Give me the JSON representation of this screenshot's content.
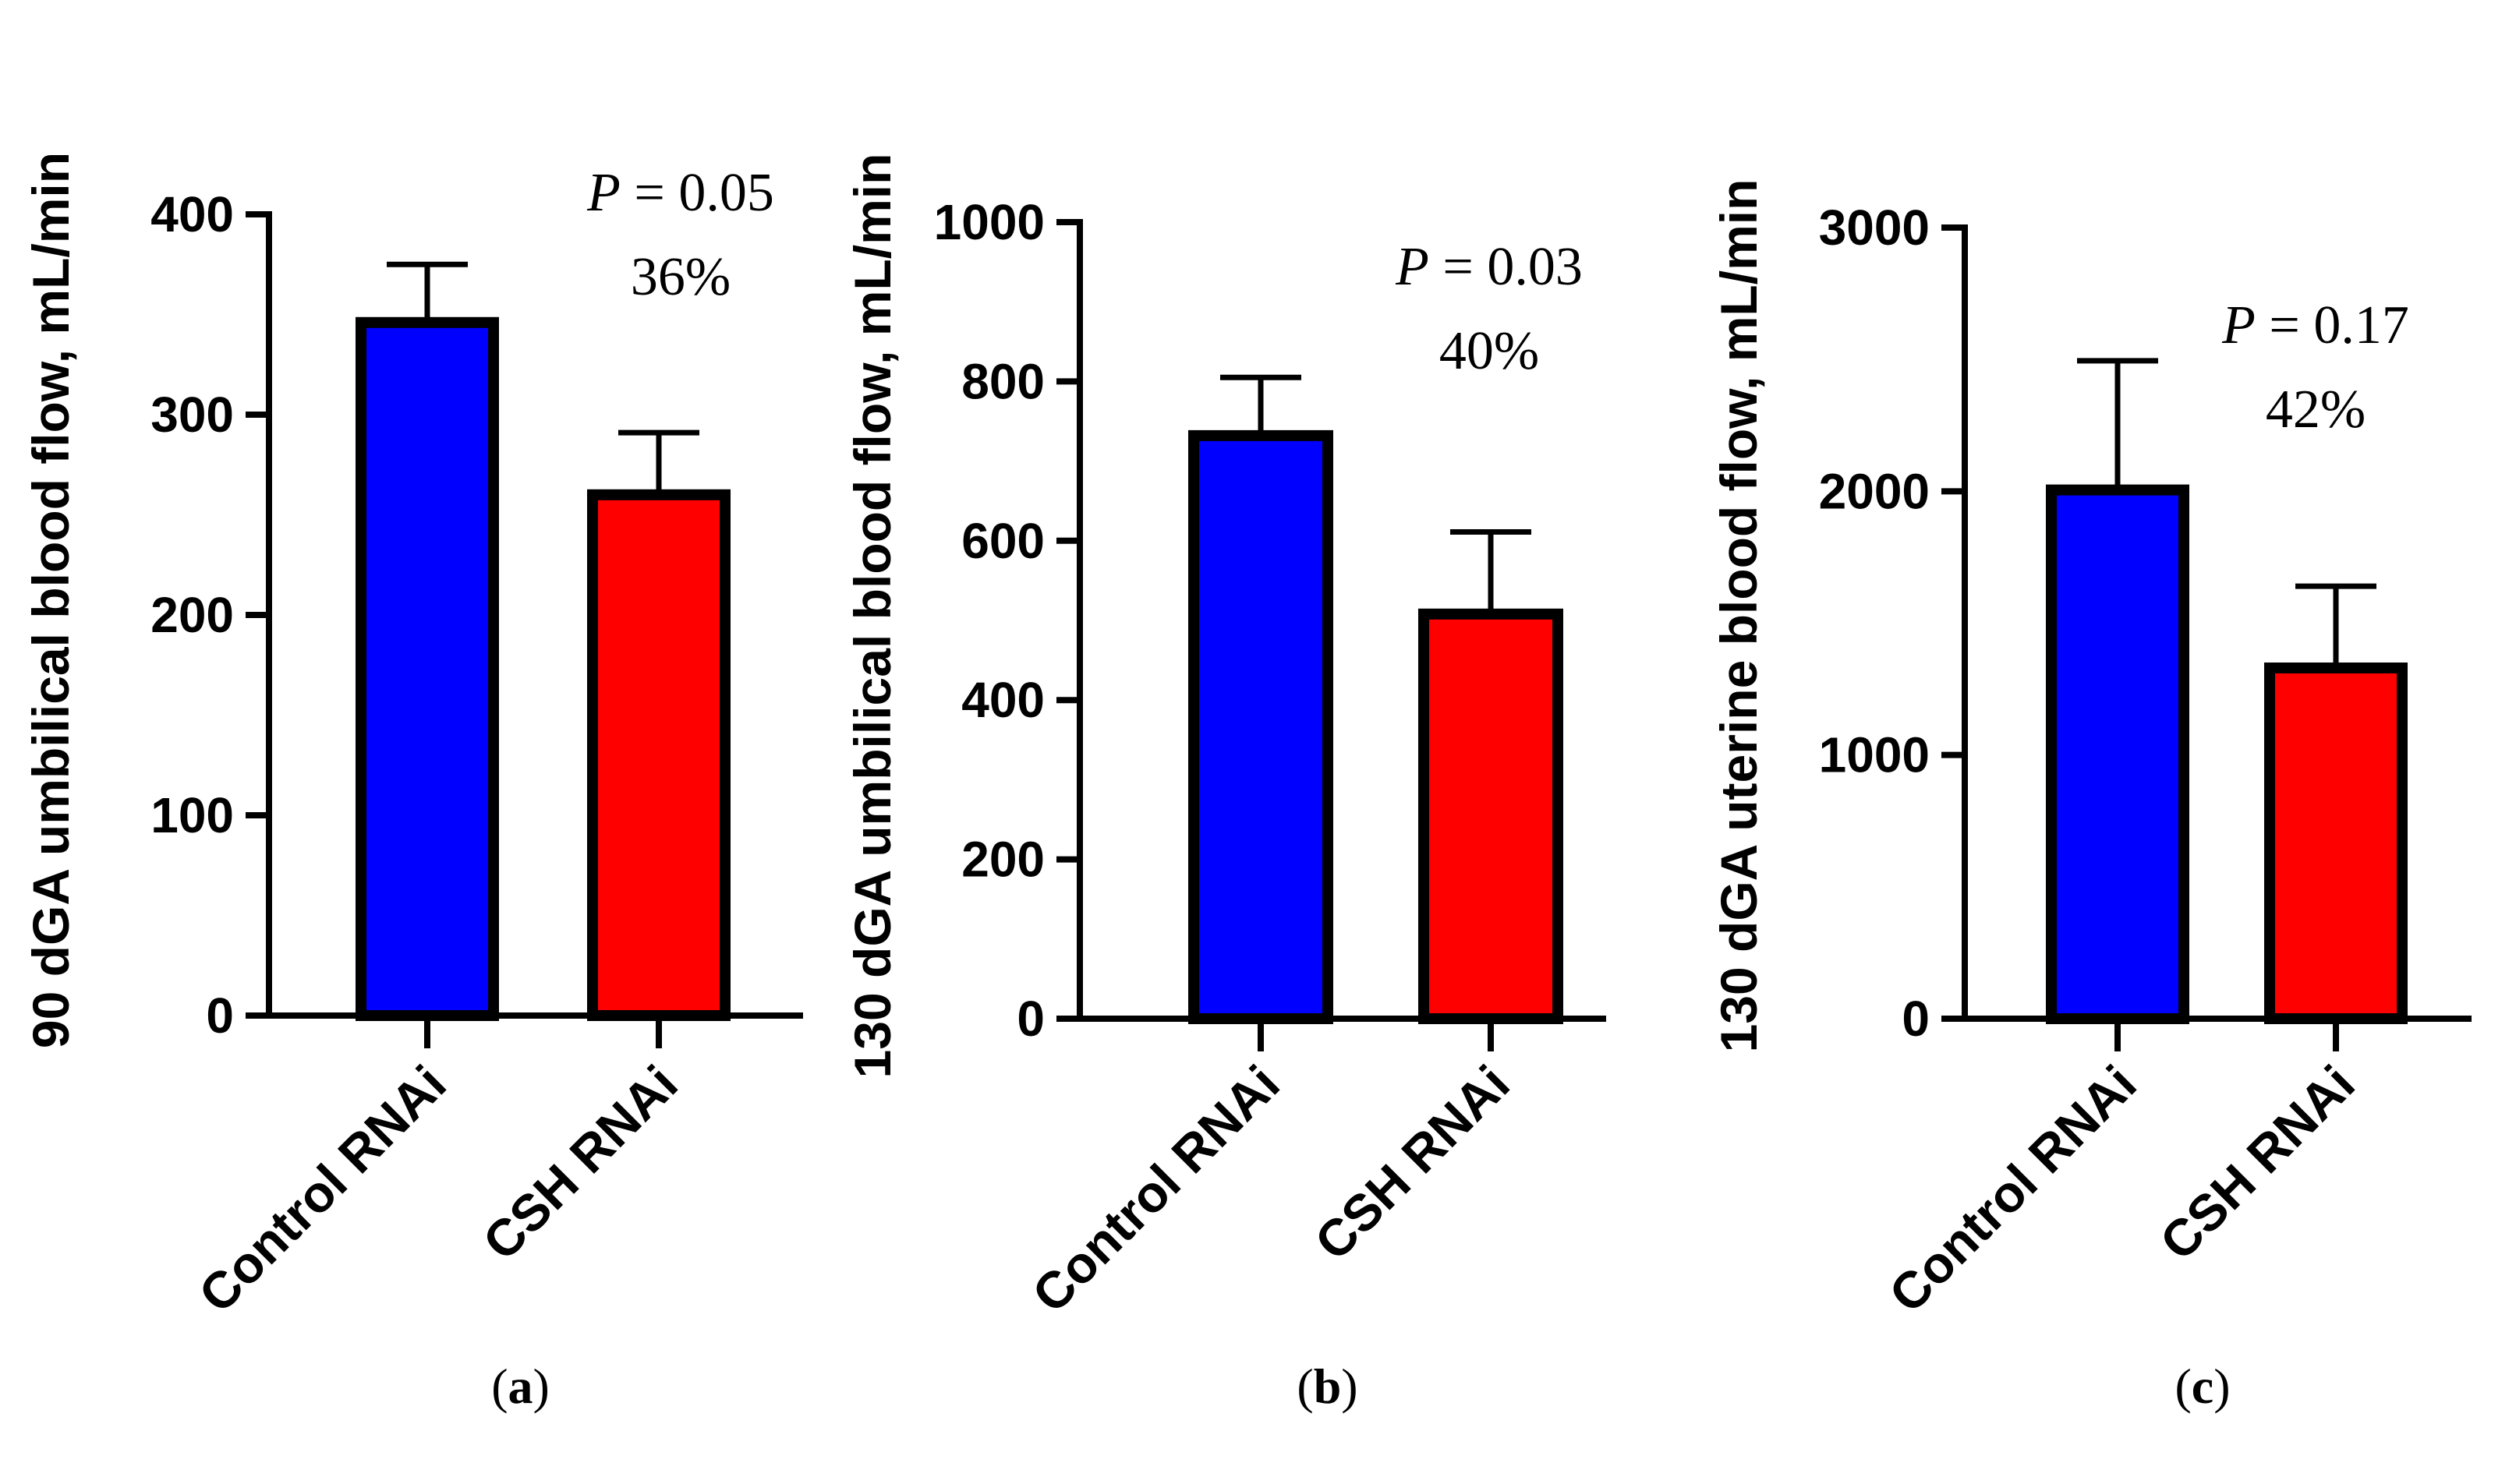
{
  "chart_data": [
    {
      "type": "bar",
      "panel": "a",
      "panel_label": "(a)",
      "ylabel": "90 dGA umbilical blood flow, mL/min",
      "categories": [
        "Control RNAi",
        "CSH RNAi"
      ],
      "values": [
        346,
        260
      ],
      "errors": [
        29,
        31
      ],
      "colors": [
        "#0000ff",
        "#ff0000"
      ],
      "ylim": [
        0,
        400
      ],
      "yticks": [
        0,
        100,
        200,
        300,
        400
      ],
      "ytick_labels": [
        "0",
        "100",
        "200",
        "300",
        "400"
      ],
      "annotation": {
        "p_symbol": "P",
        "p_value": " = 0.05",
        "percent": "36%"
      }
    },
    {
      "type": "bar",
      "panel": "b",
      "panel_label": "(b)",
      "ylabel": "130 dGA umbilical blood flow, mL/min",
      "categories": [
        "Control RNAi",
        "CSH RNAi"
      ],
      "values": [
        732,
        508
      ],
      "errors": [
        73,
        103
      ],
      "colors": [
        "#0000ff",
        "#ff0000"
      ],
      "ylim": [
        0,
        1000
      ],
      "yticks": [
        0,
        200,
        400,
        600,
        800,
        1000
      ],
      "ytick_labels": [
        "0",
        "200",
        "400",
        "600",
        "800",
        "1000"
      ],
      "annotation": {
        "p_symbol": "P",
        "p_value": " = 0.03",
        "percent": "40%"
      }
    },
    {
      "type": "bar",
      "panel": "c",
      "panel_label": "(c)",
      "ylabel": "130 dGA uterine blood flow, mL/min",
      "categories": [
        "Control RNAi",
        "CSH RNAi"
      ],
      "values": [
        2005,
        1330
      ],
      "errors": [
        490,
        310
      ],
      "colors": [
        "#0000ff",
        "#ff0000"
      ],
      "ylim": [
        0,
        3000
      ],
      "yticks": [
        0,
        1000,
        2000,
        3000
      ],
      "ytick_labels": [
        "0",
        "1000",
        "2000",
        "3000"
      ],
      "annotation": {
        "p_symbol": "P",
        "p_value": " = 0.17",
        "percent": "42%"
      }
    }
  ]
}
